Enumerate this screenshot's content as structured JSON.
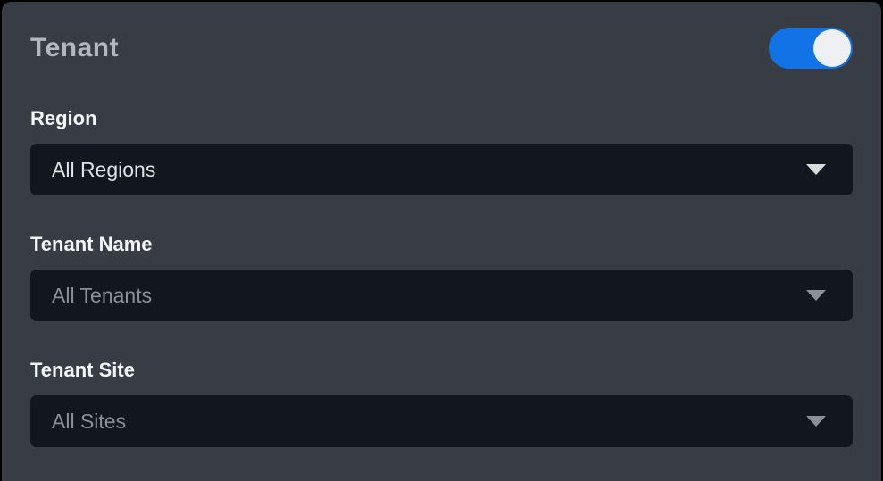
{
  "panel": {
    "title": "Tenant"
  },
  "toggle": {
    "state": "on",
    "on_color": "#1273e6",
    "knob_color": "#eef0f2"
  },
  "fields": [
    {
      "label": "Region",
      "value": "All Regions",
      "disabled": false
    },
    {
      "label": "Tenant Name",
      "value": "All Tenants",
      "disabled": true
    },
    {
      "label": "Tenant Site",
      "value": "All Sites",
      "disabled": true
    }
  ],
  "colors": {
    "page_background": "#000000",
    "panel_background": "#383c45",
    "select_background": "#12161f",
    "title_text": "#b2b7bf",
    "label_text": "#f5f6f8",
    "select_text_enabled": "#dfe2e6",
    "select_text_disabled": "#8a8f98",
    "accent_blue": "#1273e6"
  }
}
